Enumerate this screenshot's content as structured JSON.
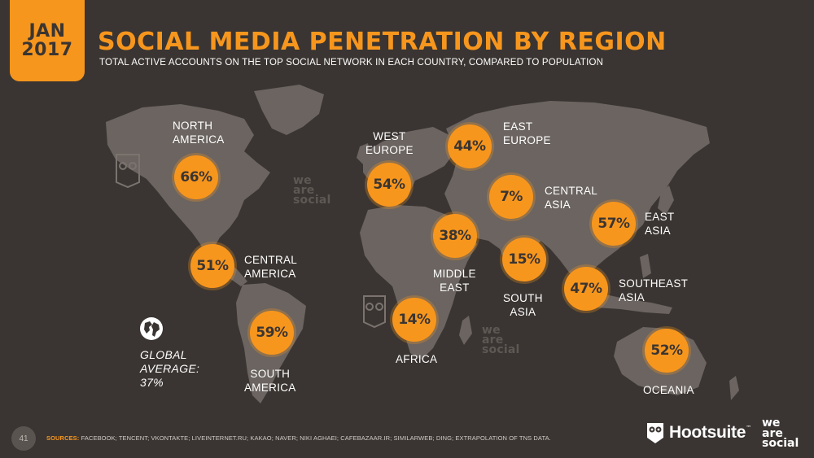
{
  "header": {
    "badge_month": "JAN",
    "badge_year": "2017",
    "title": "SOCIAL MEDIA PENETRATION BY REGION",
    "subtitle": "TOTAL ACTIVE ACCOUNTS ON THE TOP SOCIAL NETWORK IN EACH COUNTRY, COMPARED TO POPULATION"
  },
  "chart_data": {
    "type": "map",
    "title": "SOCIAL MEDIA PENETRATION BY REGION",
    "subtitle": "TOTAL ACTIVE ACCOUNTS ON THE TOP SOCIAL NETWORK IN EACH COUNTRY, COMPARED TO POPULATION",
    "regions": [
      {
        "region": "NORTH AMERICA",
        "label_lines": [
          "NORTH",
          "AMERICA"
        ],
        "value": 66,
        "display": "66%"
      },
      {
        "region": "CENTRAL AMERICA",
        "label_lines": [
          "CENTRAL",
          "AMERICA"
        ],
        "value": 51,
        "display": "51%"
      },
      {
        "region": "SOUTH AMERICA",
        "label_lines": [
          "SOUTH",
          "AMERICA"
        ],
        "value": 59,
        "display": "59%"
      },
      {
        "region": "WEST EUROPE",
        "label_lines": [
          "WEST",
          "EUROPE"
        ],
        "value": 54,
        "display": "54%"
      },
      {
        "region": "EAST EUROPE",
        "label_lines": [
          "EAST",
          "EUROPE"
        ],
        "value": 44,
        "display": "44%"
      },
      {
        "region": "CENTRAL ASIA",
        "label_lines": [
          "CENTRAL",
          "ASIA"
        ],
        "value": 7,
        "display": "7%"
      },
      {
        "region": "MIDDLE EAST",
        "label_lines": [
          "MIDDLE",
          "EAST"
        ],
        "value": 38,
        "display": "38%"
      },
      {
        "region": "AFRICA",
        "label_lines": [
          "AFRICA"
        ],
        "value": 14,
        "display": "14%"
      },
      {
        "region": "SOUTH ASIA",
        "label_lines": [
          "SOUTH",
          "ASIA"
        ],
        "value": 15,
        "display": "15%"
      },
      {
        "region": "EAST ASIA",
        "label_lines": [
          "EAST",
          "ASIA"
        ],
        "value": 57,
        "display": "57%"
      },
      {
        "region": "SOUTHEAST ASIA",
        "label_lines": [
          "SOUTHEAST",
          "ASIA"
        ],
        "value": 47,
        "display": "47%"
      },
      {
        "region": "OCEANIA",
        "label_lines": [
          "OCEANIA"
        ],
        "value": 52,
        "display": "52%"
      }
    ],
    "global_average": {
      "label_lines": [
        "GLOBAL",
        "AVERAGE:"
      ],
      "value": 37,
      "display": "37%"
    },
    "colors": {
      "bubble": "#f7961d",
      "background": "#3a3532",
      "land": "#6b6460"
    }
  },
  "watermark": {
    "line1": "we",
    "line2": "are",
    "line3": "social"
  },
  "footer": {
    "page_number": "41",
    "sources_heading": "SOURCES:",
    "sources_text": " FACEBOOK; TENCENT; VKONTAKTE; LIVEINTERNET.RU; KAKAO; NAVER; NIKI AGHAEI; CAFEBAZAAR.IR; SIMILARWEB; DING; EXTRAPOLATION OF TNS DATA.",
    "hootsuite": "Hootsuite",
    "trademark": "™",
    "brand_line1": "we",
    "brand_line2": "are",
    "brand_line3": "social"
  }
}
